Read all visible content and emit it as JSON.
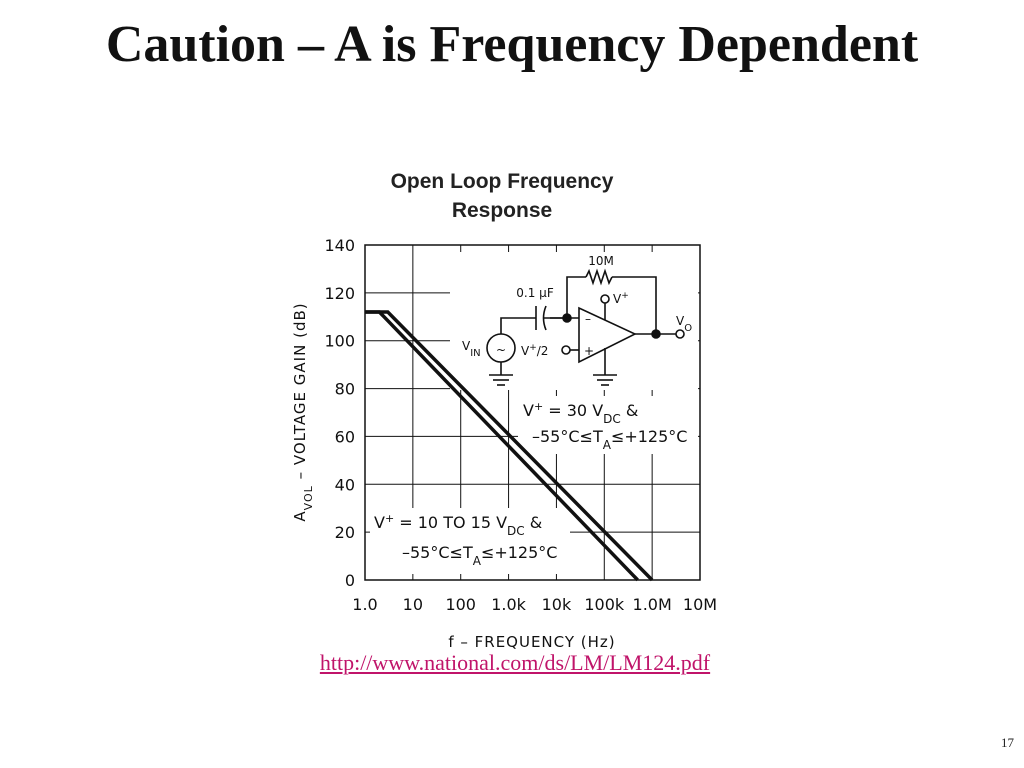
{
  "slide": {
    "title": "Caution – A is Frequency Dependent",
    "source_link": "http://www.national.com/ds/LM/LM124.pdf",
    "page_number": "17"
  },
  "chart_data": {
    "type": "line",
    "title_line1": "Open Loop Frequency",
    "title_line2": "Response",
    "xlabel": "f – FREQUENCY (Hz)",
    "ylabel_main": "A",
    "ylabel_sub": "VOL",
    "ylabel_rest": " – VOLTAGE GAIN (dB)",
    "x_scale": "log",
    "xlim": [
      1,
      10000000
    ],
    "ylim": [
      0,
      140
    ],
    "grid": true,
    "x_ticks": [
      {
        "value": 1,
        "label": "1.0"
      },
      {
        "value": 10,
        "label": "10"
      },
      {
        "value": 100,
        "label": "100"
      },
      {
        "value": 1000,
        "label": "1.0k"
      },
      {
        "value": 10000,
        "label": "10k"
      },
      {
        "value": 100000,
        "label": "100k"
      },
      {
        "value": 1000000,
        "label": "1.0M"
      },
      {
        "value": 10000000,
        "label": "10M"
      }
    ],
    "y_ticks": [
      0,
      20,
      40,
      60,
      80,
      100,
      120,
      140
    ],
    "series": [
      {
        "points": [
          [
            1,
            112
          ],
          [
            3,
            112
          ],
          [
            1000000,
            0
          ]
        ]
      },
      {
        "points": [
          [
            1,
            112
          ],
          [
            2,
            112
          ],
          [
            500000,
            0
          ]
        ]
      }
    ],
    "annotations": {
      "high": {
        "line1_a": "V",
        "line1_sup": "+",
        "line1_b": " = 30 V",
        "line1_sub": "DC",
        "line1_c": "  &",
        "line2_a": "–55°C≤T",
        "line2_sub": "A",
        "line2_b": "≤+125°C"
      },
      "low": {
        "line1_a": "V",
        "line1_sup": "+",
        "line1_b": " = 10  TO  15 V",
        "line1_sub": "DC",
        "line1_c": "  &",
        "line2_a": "–55°C≤T",
        "line2_sub": "A",
        "line2_b": "≤+125°C"
      }
    },
    "circuit": {
      "resistor_label": "10M",
      "cap_label": "0.1 µF",
      "vplus_sup": "+",
      "vin_main": "V",
      "vin_sub": "IN",
      "vhalf_a": "V",
      "vhalf_sup": "+",
      "vhalf_b": "/2",
      "vo_main": "V",
      "vo_sub": "O",
      "minus_sign": "–",
      "plus_sign": "+",
      "source_symbol": "~",
      "vplus_main": "V"
    }
  }
}
